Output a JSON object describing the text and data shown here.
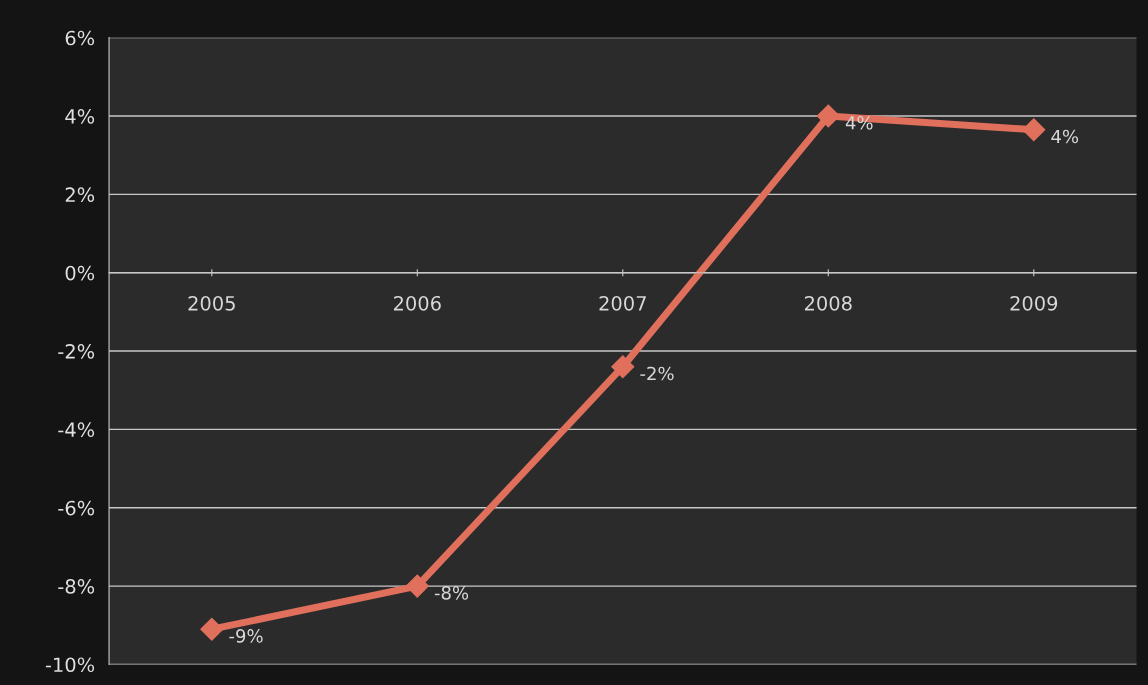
{
  "chart_data": {
    "type": "line",
    "categories": [
      "2005",
      "2006",
      "2007",
      "2008",
      "2009"
    ],
    "series": [
      {
        "color": "#e0705c",
        "values": [
          -9.1,
          -8.0,
          -2.4,
          4.0,
          3.65
        ],
        "value_labels": [
          "-9%",
          "-8%",
          "-2%",
          "4%",
          "4%"
        ]
      }
    ],
    "ylim": [
      -10,
      6
    ],
    "yticks": [
      {
        "value": -10,
        "label": "-10%"
      },
      {
        "value": -8,
        "label": "-8%"
      },
      {
        "value": -6,
        "label": "-6%"
      },
      {
        "value": -4,
        "label": "-4%"
      },
      {
        "value": -2,
        "label": "-2%"
      },
      {
        "value": 0,
        "label": "0%"
      },
      {
        "value": 2,
        "label": "2%"
      },
      {
        "value": 4,
        "label": "4%"
      },
      {
        "value": 6,
        "label": "6%"
      }
    ],
    "grid": "y",
    "marker": "diamond",
    "line_style": "solid",
    "legend": false
  }
}
